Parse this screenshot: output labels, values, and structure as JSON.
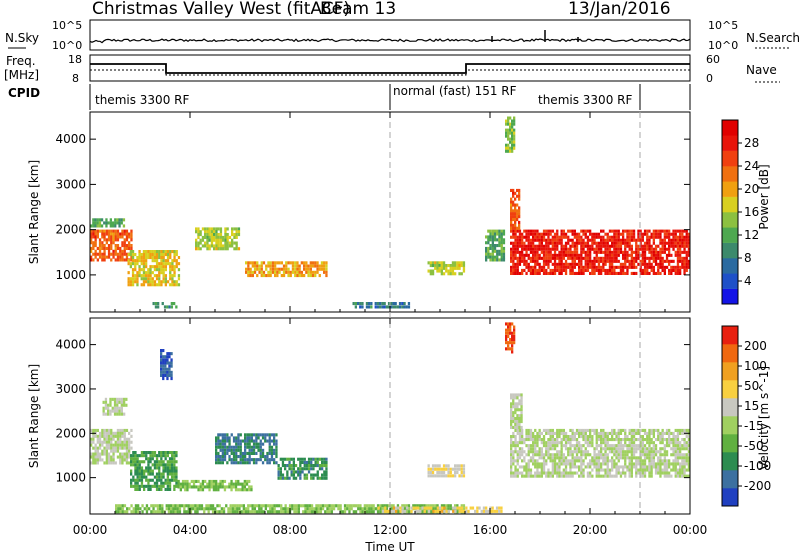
{
  "header": {
    "station": "Christmas Valley West (fitACF)",
    "beam": "Beam 13",
    "date": "13/Jan/2016"
  },
  "top_panels": {
    "nsky_label": "N.Sky",
    "nsky_ticks": [
      "10^5",
      "10^0"
    ],
    "nsearch_label": "N.Search",
    "nsearch_ticks": [
      "10^5",
      "10^0"
    ],
    "freq_label_1": "Freq.",
    "freq_label_2": "[MHz]",
    "freq_ticks": [
      "18",
      "8"
    ],
    "nave_label": "Nave",
    "nave_ticks": [
      "60",
      "0"
    ],
    "cpid_label": "CPID",
    "cpid_segments": [
      "themis 3300 RF",
      "normal (fast) 151 RF",
      "themis 3300 RF"
    ]
  },
  "chart_data": [
    {
      "type": "heatmap",
      "name": "power",
      "ylabel": "Slant Range [km]",
      "yticks": [
        "4000",
        "3000",
        "2000",
        "1000"
      ],
      "ylim": [
        180,
        4600
      ],
      "xlim": [
        0,
        24
      ],
      "colorbar": {
        "label": "Power [dB]",
        "ticks": [
          "28",
          "24",
          "20",
          "16",
          "12",
          "8",
          "4"
        ],
        "colors": [
          "#1414e6",
          "#1e50c8",
          "#2a6aa0",
          "#3c8a6c",
          "#4ea850",
          "#8cc040",
          "#d8d020",
          "#f0a010",
          "#f07010",
          "#f04010",
          "#e8140a",
          "#e00000"
        ],
        "range": [
          0,
          32
        ]
      },
      "regions": [
        {
          "t0": 0.0,
          "t1": 1.7,
          "r0": 1300,
          "r1": 2000,
          "v": 24
        },
        {
          "t0": 0.0,
          "t1": 1.4,
          "r0": 2050,
          "r1": 2250,
          "v": 12
        },
        {
          "t0": 1.5,
          "t1": 3.6,
          "r0": 750,
          "r1": 1550,
          "v": 18
        },
        {
          "t0": 2.5,
          "t1": 3.5,
          "r0": 250,
          "r1": 400,
          "v": 10
        },
        {
          "t0": 4.2,
          "t1": 6.0,
          "r0": 1550,
          "r1": 2050,
          "v": 16
        },
        {
          "t0": 6.2,
          "t1": 9.5,
          "r0": 950,
          "r1": 1300,
          "v": 20
        },
        {
          "t0": 10.5,
          "t1": 12.8,
          "r0": 250,
          "r1": 400,
          "v": 8
        },
        {
          "t0": 13.5,
          "t1": 15.0,
          "r0": 1000,
          "r1": 1300,
          "v": 16
        },
        {
          "t0": 15.8,
          "t1": 16.6,
          "r0": 1300,
          "r1": 2000,
          "v": 12
        },
        {
          "t0": 16.8,
          "t1": 24.0,
          "r0": 1000,
          "r1": 2000,
          "v": 28
        },
        {
          "t0": 16.8,
          "t1": 17.2,
          "r0": 2000,
          "r1": 2900,
          "v": 24
        },
        {
          "t0": 16.6,
          "t1": 17.0,
          "r0": 3700,
          "r1": 4500,
          "v": 14
        }
      ]
    },
    {
      "type": "heatmap",
      "name": "velocity",
      "ylabel": "Slant Range [km]",
      "yticks": [
        "4000",
        "3000",
        "2000",
        "1000"
      ],
      "ylim": [
        180,
        4600
      ],
      "xlim": [
        0,
        24
      ],
      "colorbar": {
        "label": "Velocity [m s^-1]",
        "ticks": [
          "200",
          "100",
          "50",
          "15",
          "-15",
          "-50",
          "-100",
          "-200"
        ],
        "colors": [
          "#2040c0",
          "#3c70a0",
          "#2c8c50",
          "#60b040",
          "#a0d060",
          "#c8c8c0",
          "#f8d040",
          "#f0a020",
          "#f06810",
          "#e82010"
        ],
        "range": [
          -250,
          250
        ]
      },
      "regions": [
        {
          "t0": 0.0,
          "t1": 1.7,
          "r0": 1300,
          "r1": 2100,
          "v": 0
        },
        {
          "t0": 0.5,
          "t1": 1.5,
          "r0": 2400,
          "r1": 2800,
          "v": 0
        },
        {
          "t0": 1.6,
          "t1": 3.5,
          "r0": 700,
          "r1": 1600,
          "v": -100
        },
        {
          "t0": 2.8,
          "t1": 3.3,
          "r0": 3200,
          "r1": 3900,
          "v": -200
        },
        {
          "t0": 3.5,
          "t1": 6.5,
          "r0": 700,
          "r1": 950,
          "v": -50
        },
        {
          "t0": 5.0,
          "t1": 7.5,
          "r0": 1300,
          "r1": 2000,
          "v": -150
        },
        {
          "t0": 7.5,
          "t1": 9.5,
          "r0": 950,
          "r1": 1450,
          "v": -120
        },
        {
          "t0": 1.0,
          "t1": 15.0,
          "r0": 200,
          "r1": 400,
          "v": -50
        },
        {
          "t0": 11.5,
          "t1": 16.5,
          "r0": 200,
          "r1": 350,
          "v": 60
        },
        {
          "t0": 13.5,
          "t1": 15.0,
          "r0": 1000,
          "r1": 1300,
          "v": 40
        },
        {
          "t0": 16.8,
          "t1": 24.0,
          "r0": 1000,
          "r1": 2100,
          "v": 0
        },
        {
          "t0": 16.8,
          "t1": 17.3,
          "r0": 2100,
          "r1": 2900,
          "v": 0
        },
        {
          "t0": 16.6,
          "t1": 17.0,
          "r0": 3800,
          "r1": 4500,
          "v": 200
        }
      ]
    }
  ],
  "x_axis": {
    "ticks": [
      "00:00",
      "04:00",
      "08:00",
      "12:00",
      "16:00",
      "20:00",
      "00:00"
    ],
    "label": "Time UT"
  }
}
